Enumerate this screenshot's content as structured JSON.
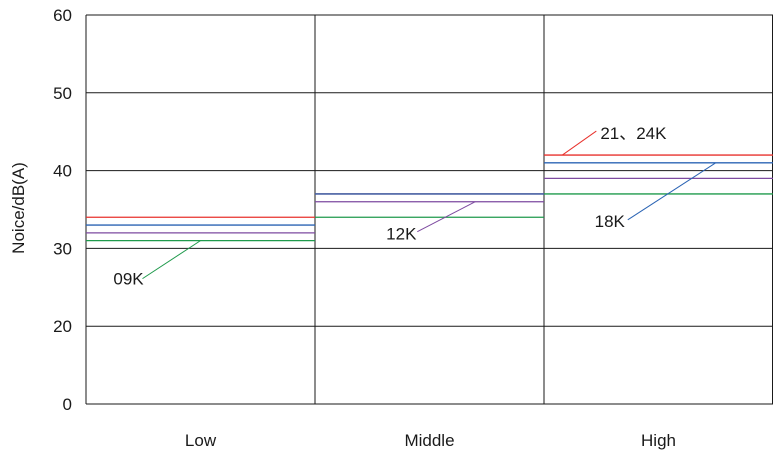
{
  "chart_data": {
    "type": "line",
    "ylabel": "Noice/dB(A)",
    "xlabel": "",
    "categories": [
      "Low",
      "Middle",
      "High"
    ],
    "y_ticks": [
      0,
      20,
      30,
      40,
      50,
      60
    ],
    "grid": true,
    "series": [
      {
        "name": "21、24K",
        "color": "#e8322d",
        "values": [
          34,
          37,
          42
        ]
      },
      {
        "name": "18K",
        "color": "#2b64b4",
        "values": [
          33,
          37,
          41
        ]
      },
      {
        "name": "12K",
        "color": "#7d4aa0",
        "values": [
          32,
          36,
          39
        ]
      },
      {
        "name": "09K",
        "color": "#1f9a4c",
        "values": [
          31,
          34,
          37
        ]
      }
    ],
    "annotations": [
      {
        "text": "09K",
        "series": "09K",
        "category": "Low"
      },
      {
        "text": "12K",
        "series": "12K",
        "category": "Middle"
      },
      {
        "text": "21、24K",
        "series": "21、24K",
        "category": "High"
      },
      {
        "text": "18K",
        "series": "18K",
        "category": "High"
      }
    ]
  }
}
